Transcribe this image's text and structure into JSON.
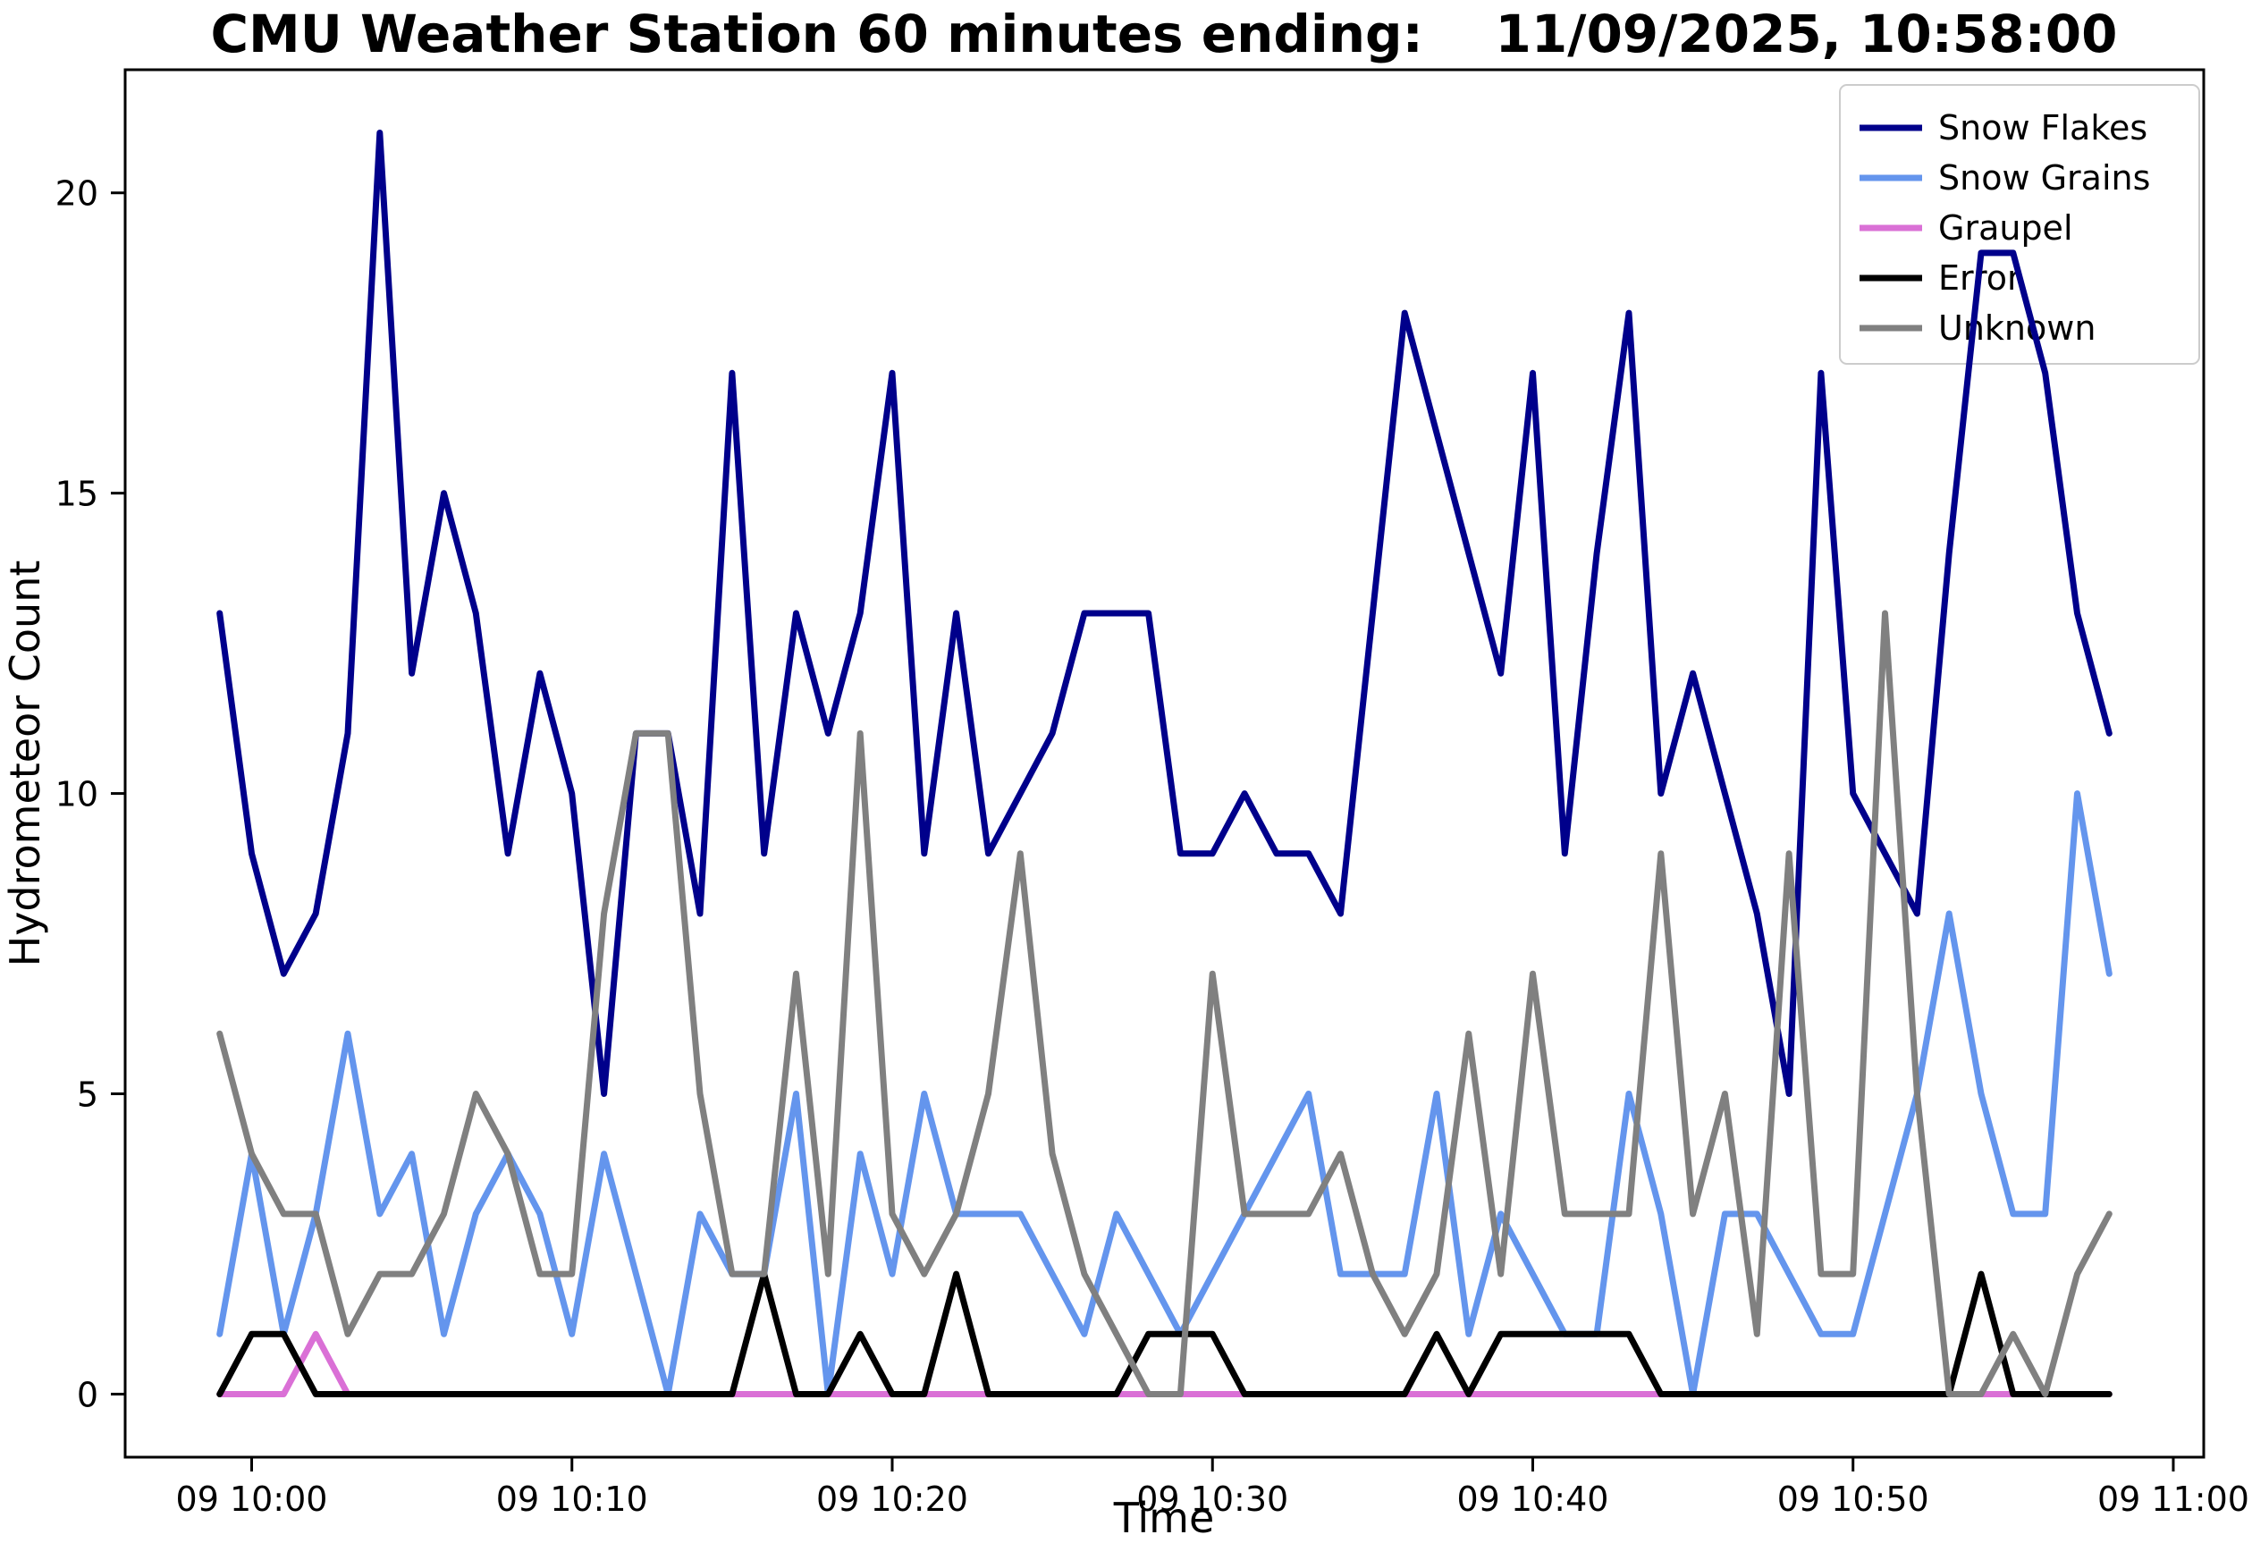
{
  "figure": {
    "background": "#ffffff",
    "frame_color": "#000000"
  },
  "chart_data": {
    "type": "line",
    "title": "CMU Weather Station 60 minutes ending:    11/09/2025, 10:58:00",
    "xlabel": "Time",
    "ylabel": "Hydrometeor Count",
    "grid": false,
    "legend_position": "upper right",
    "ylim": [
      -1.05,
      22.05
    ],
    "xlim_minutes": [
      -3.95,
      60.95
    ],
    "y_ticks": [
      0,
      5,
      10,
      15,
      20
    ],
    "x_ticks": [
      {
        "minute": 0,
        "label": "09 10:00"
      },
      {
        "minute": 10,
        "label": "09 10:10"
      },
      {
        "minute": 20,
        "label": "09 10:20"
      },
      {
        "minute": 30,
        "label": "09 10:30"
      },
      {
        "minute": 40,
        "label": "09 10:40"
      },
      {
        "minute": 50,
        "label": "09 10:50"
      },
      {
        "minute": 60,
        "label": "09 11:00"
      }
    ],
    "x_start_minute_offset": -1,
    "x_step_minutes": 1,
    "x_axis_note": "one sample per minute, offsets relative to 10:00, ending 10:58",
    "series": [
      {
        "name": "Snow Flakes",
        "color": "#00008B",
        "values": [
          13,
          9,
          7,
          8,
          11,
          21,
          12,
          15,
          13,
          9,
          12,
          10,
          5,
          11,
          11,
          8,
          17,
          9,
          13,
          11,
          13,
          17,
          9,
          13,
          9,
          10,
          11,
          13,
          13,
          13,
          9,
          9,
          10,
          9,
          9,
          8,
          13,
          18,
          16,
          14,
          12,
          17,
          9,
          14,
          18,
          10,
          12,
          10,
          8,
          5,
          17,
          10,
          9,
          8,
          14,
          19,
          19,
          17,
          13,
          11
        ]
      },
      {
        "name": "Snow Grains",
        "color": "#6495ED",
        "values": [
          1,
          4,
          1,
          3,
          6,
          3,
          4,
          1,
          3,
          4,
          3,
          1,
          4,
          2,
          0,
          3,
          2,
          2,
          5,
          0,
          4,
          2,
          5,
          3,
          3,
          3,
          2,
          1,
          3,
          2,
          1,
          2,
          3,
          4,
          5,
          2,
          2,
          2,
          5,
          1,
          3,
          2,
          1,
          1,
          5,
          3,
          0,
          3,
          3,
          2,
          1,
          1,
          3,
          5,
          8,
          5,
          3,
          3,
          10,
          7
        ]
      },
      {
        "name": "Graupel",
        "color": "#DA70D6",
        "values": [
          0,
          0,
          0,
          1,
          0,
          0,
          0,
          0,
          0,
          0,
          0,
          0,
          0,
          0,
          0,
          0,
          0,
          0,
          0,
          0,
          0,
          0,
          0,
          0,
          0,
          0,
          0,
          0,
          0,
          0,
          0,
          0,
          0,
          0,
          0,
          0,
          0,
          0,
          0,
          0,
          0,
          0,
          0,
          0,
          0,
          0,
          0,
          0,
          0,
          0,
          0,
          0,
          0,
          0,
          0,
          0,
          0,
          0,
          0,
          0
        ]
      },
      {
        "name": "Error",
        "color": "#000000",
        "values": [
          0,
          1,
          1,
          0,
          0,
          0,
          0,
          0,
          0,
          0,
          0,
          0,
          0,
          0,
          0,
          0,
          0,
          2,
          0,
          0,
          1,
          0,
          0,
          2,
          0,
          0,
          0,
          0,
          0,
          1,
          1,
          1,
          0,
          0,
          0,
          0,
          0,
          0,
          1,
          0,
          1,
          1,
          1,
          1,
          1,
          0,
          0,
          0,
          0,
          0,
          0,
          0,
          0,
          0,
          0,
          2,
          0,
          0,
          0,
          0
        ]
      },
      {
        "name": "Unknown",
        "color": "#808080",
        "values": [
          6,
          4,
          3,
          3,
          1,
          2,
          2,
          3,
          5,
          4,
          2,
          2,
          8,
          11,
          11,
          5,
          2,
          2,
          7,
          2,
          11,
          3,
          2,
          3,
          5,
          9,
          4,
          2,
          1,
          0,
          0,
          7,
          3,
          3,
          3,
          4,
          2,
          1,
          2,
          6,
          2,
          7,
          3,
          3,
          3,
          9,
          3,
          5,
          1,
          9,
          2,
          2,
          13,
          5,
          0,
          0,
          1,
          0,
          2,
          3
        ]
      }
    ]
  }
}
